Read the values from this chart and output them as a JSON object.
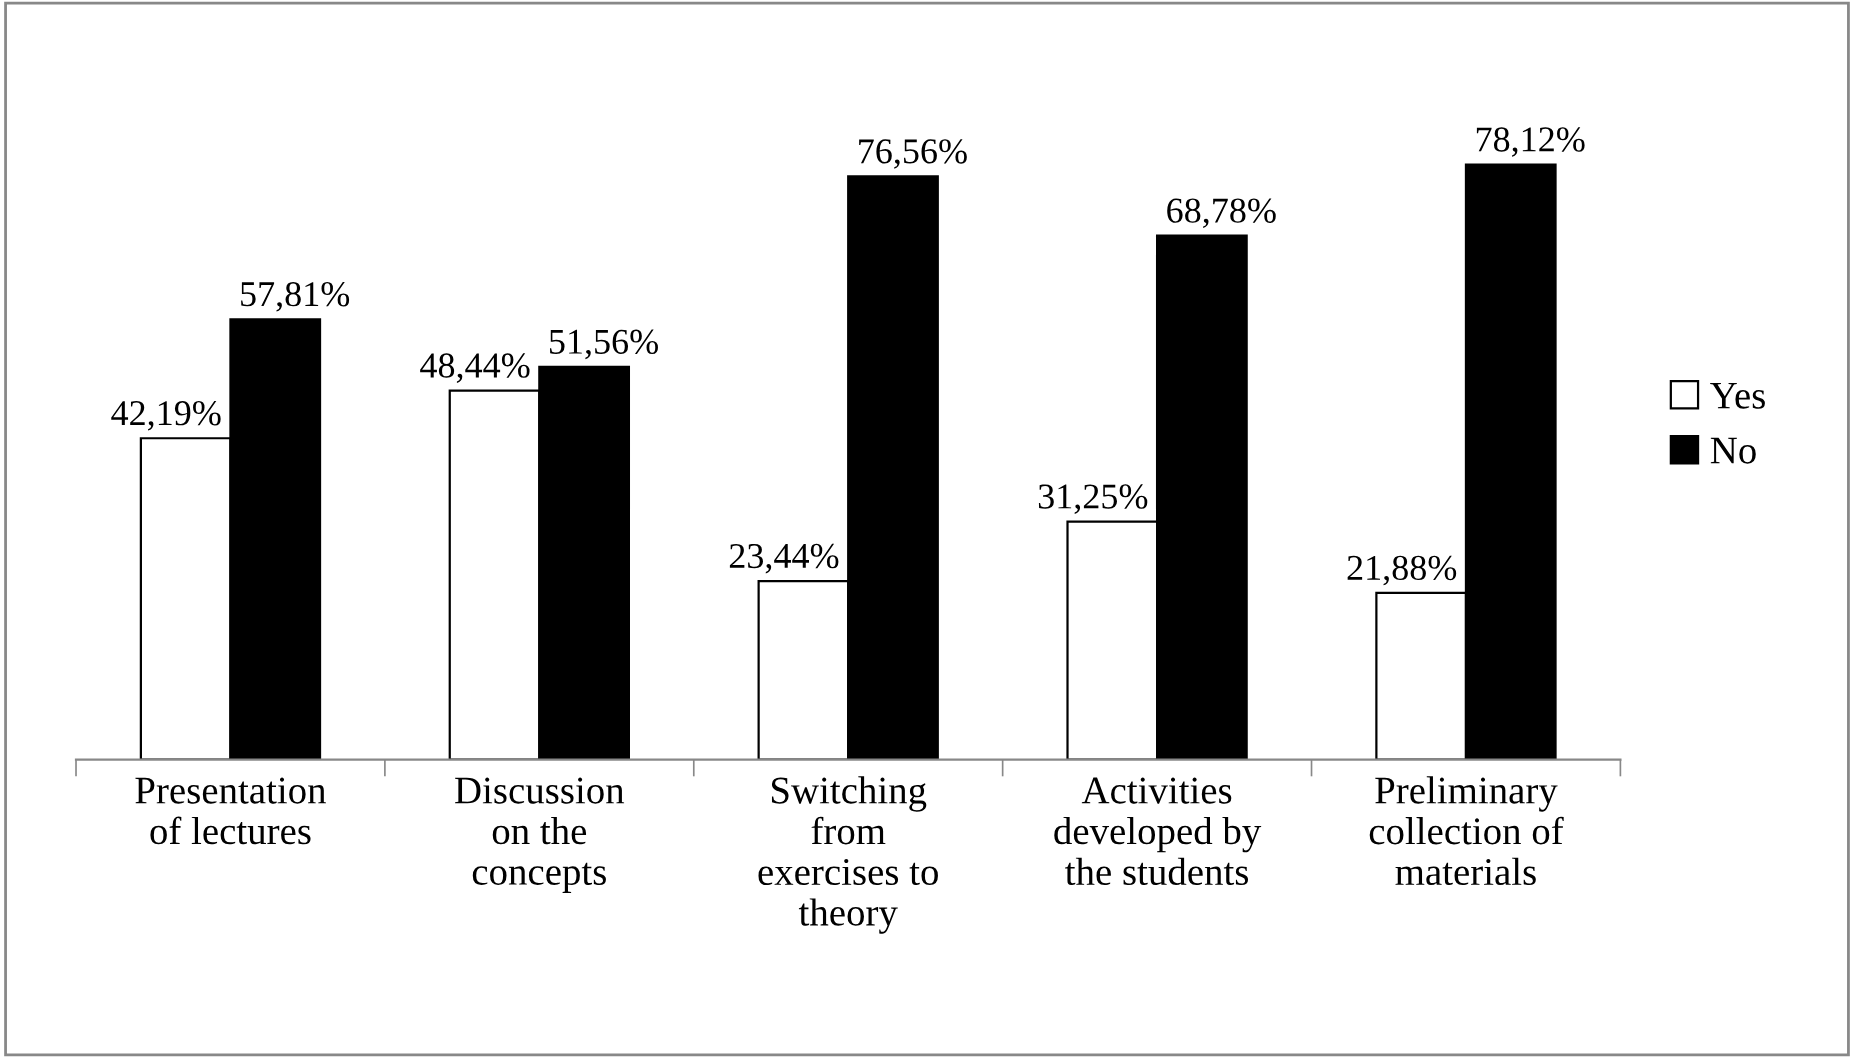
{
  "chart_data": {
    "type": "bar",
    "categories": [
      "Presentation\nof lectures",
      "Discussion\non the\nconcepts",
      "Switching\nfrom\nexercises to\ntheory",
      "Activities\ndeveloped by\nthe students",
      "Preliminary\ncollection of\nmaterials"
    ],
    "series": [
      {
        "name": "Yes",
        "color": "#ffffff",
        "values": [
          42.19,
          48.44,
          23.44,
          31.25,
          21.88
        ],
        "value_labels": [
          "42,19%",
          "48,44%",
          "23,44%",
          "31,25%",
          "21,88%"
        ]
      },
      {
        "name": "No",
        "color": "#000000",
        "values": [
          57.81,
          51.56,
          76.56,
          68.78,
          78.12
        ],
        "value_labels": [
          "57,81%",
          "51,56%",
          "76,56%",
          "68,78%",
          "78,12%"
        ]
      }
    ],
    "legend": "right",
    "grid": false
  }
}
